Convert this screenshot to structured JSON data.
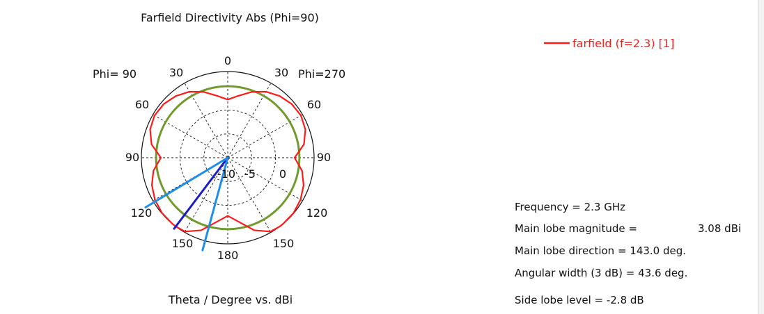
{
  "chart_data": {
    "type": "polar",
    "title": "Farfield Directivity Abs (Phi=90)",
    "xlabel": "Theta / Degree vs. dBi",
    "left_phi_label": "Phi= 90",
    "right_phi_label": "Phi=270",
    "angle_ticks": [
      "0",
      "30",
      "60",
      "90",
      "120",
      "150",
      "180",
      "150",
      "120",
      "90",
      "60",
      "30"
    ],
    "radial_ticks": [
      "-10",
      "-5",
      "0"
    ],
    "radial_range_dBi": [
      -15,
      3.08
    ],
    "legend": {
      "label": "farfield (f=2.3) [1]",
      "color": "#ff1a1a",
      "placement": "top-right"
    },
    "series": [
      {
        "name": "farfield (f=2.3) [1]",
        "color": "#ff1a1a",
        "theta_deg": [
          0,
          10,
          20,
          30,
          40,
          50,
          60,
          70,
          80,
          90,
          100,
          110,
          120,
          130,
          140,
          143,
          150,
          160,
          170,
          180
        ],
        "directivity_dBi": [
          -2.8,
          -1.8,
          -0.3,
          1.0,
          1.9,
          2.5,
          2.7,
          2.3,
          1.2,
          -1.0,
          0.8,
          1.9,
          2.6,
          3.0,
          3.08,
          3.08,
          2.9,
          1.2,
          -1.3,
          -2.8
        ],
        "mirrored": true
      }
    ],
    "reference_circle_dBi": 0,
    "reference_circle_color": "#6f9a2c",
    "markers": [
      {
        "name": "main-lobe-direction",
        "theta_deg": 143.0,
        "color": "#1b1ec8"
      },
      {
        "name": "beamwidth-edge-1",
        "theta_deg": 121.2,
        "color": "#1f8ee8"
      },
      {
        "name": "beamwidth-edge-2",
        "theta_deg": 164.8,
        "color": "#1f8ee8"
      }
    ],
    "info": {
      "frequency": "Frequency = 2.3 GHz",
      "main_lobe_magnitude_label": "Main lobe magnitude =",
      "main_lobe_magnitude_value": "3.08 dBi",
      "main_lobe_direction": "Main lobe direction = 143.0 deg.",
      "angular_width": "Angular width (3 dB) = 43.6 deg.",
      "side_lobe_level": "Side lobe level = -2.8 dB"
    },
    "grid": true
  }
}
